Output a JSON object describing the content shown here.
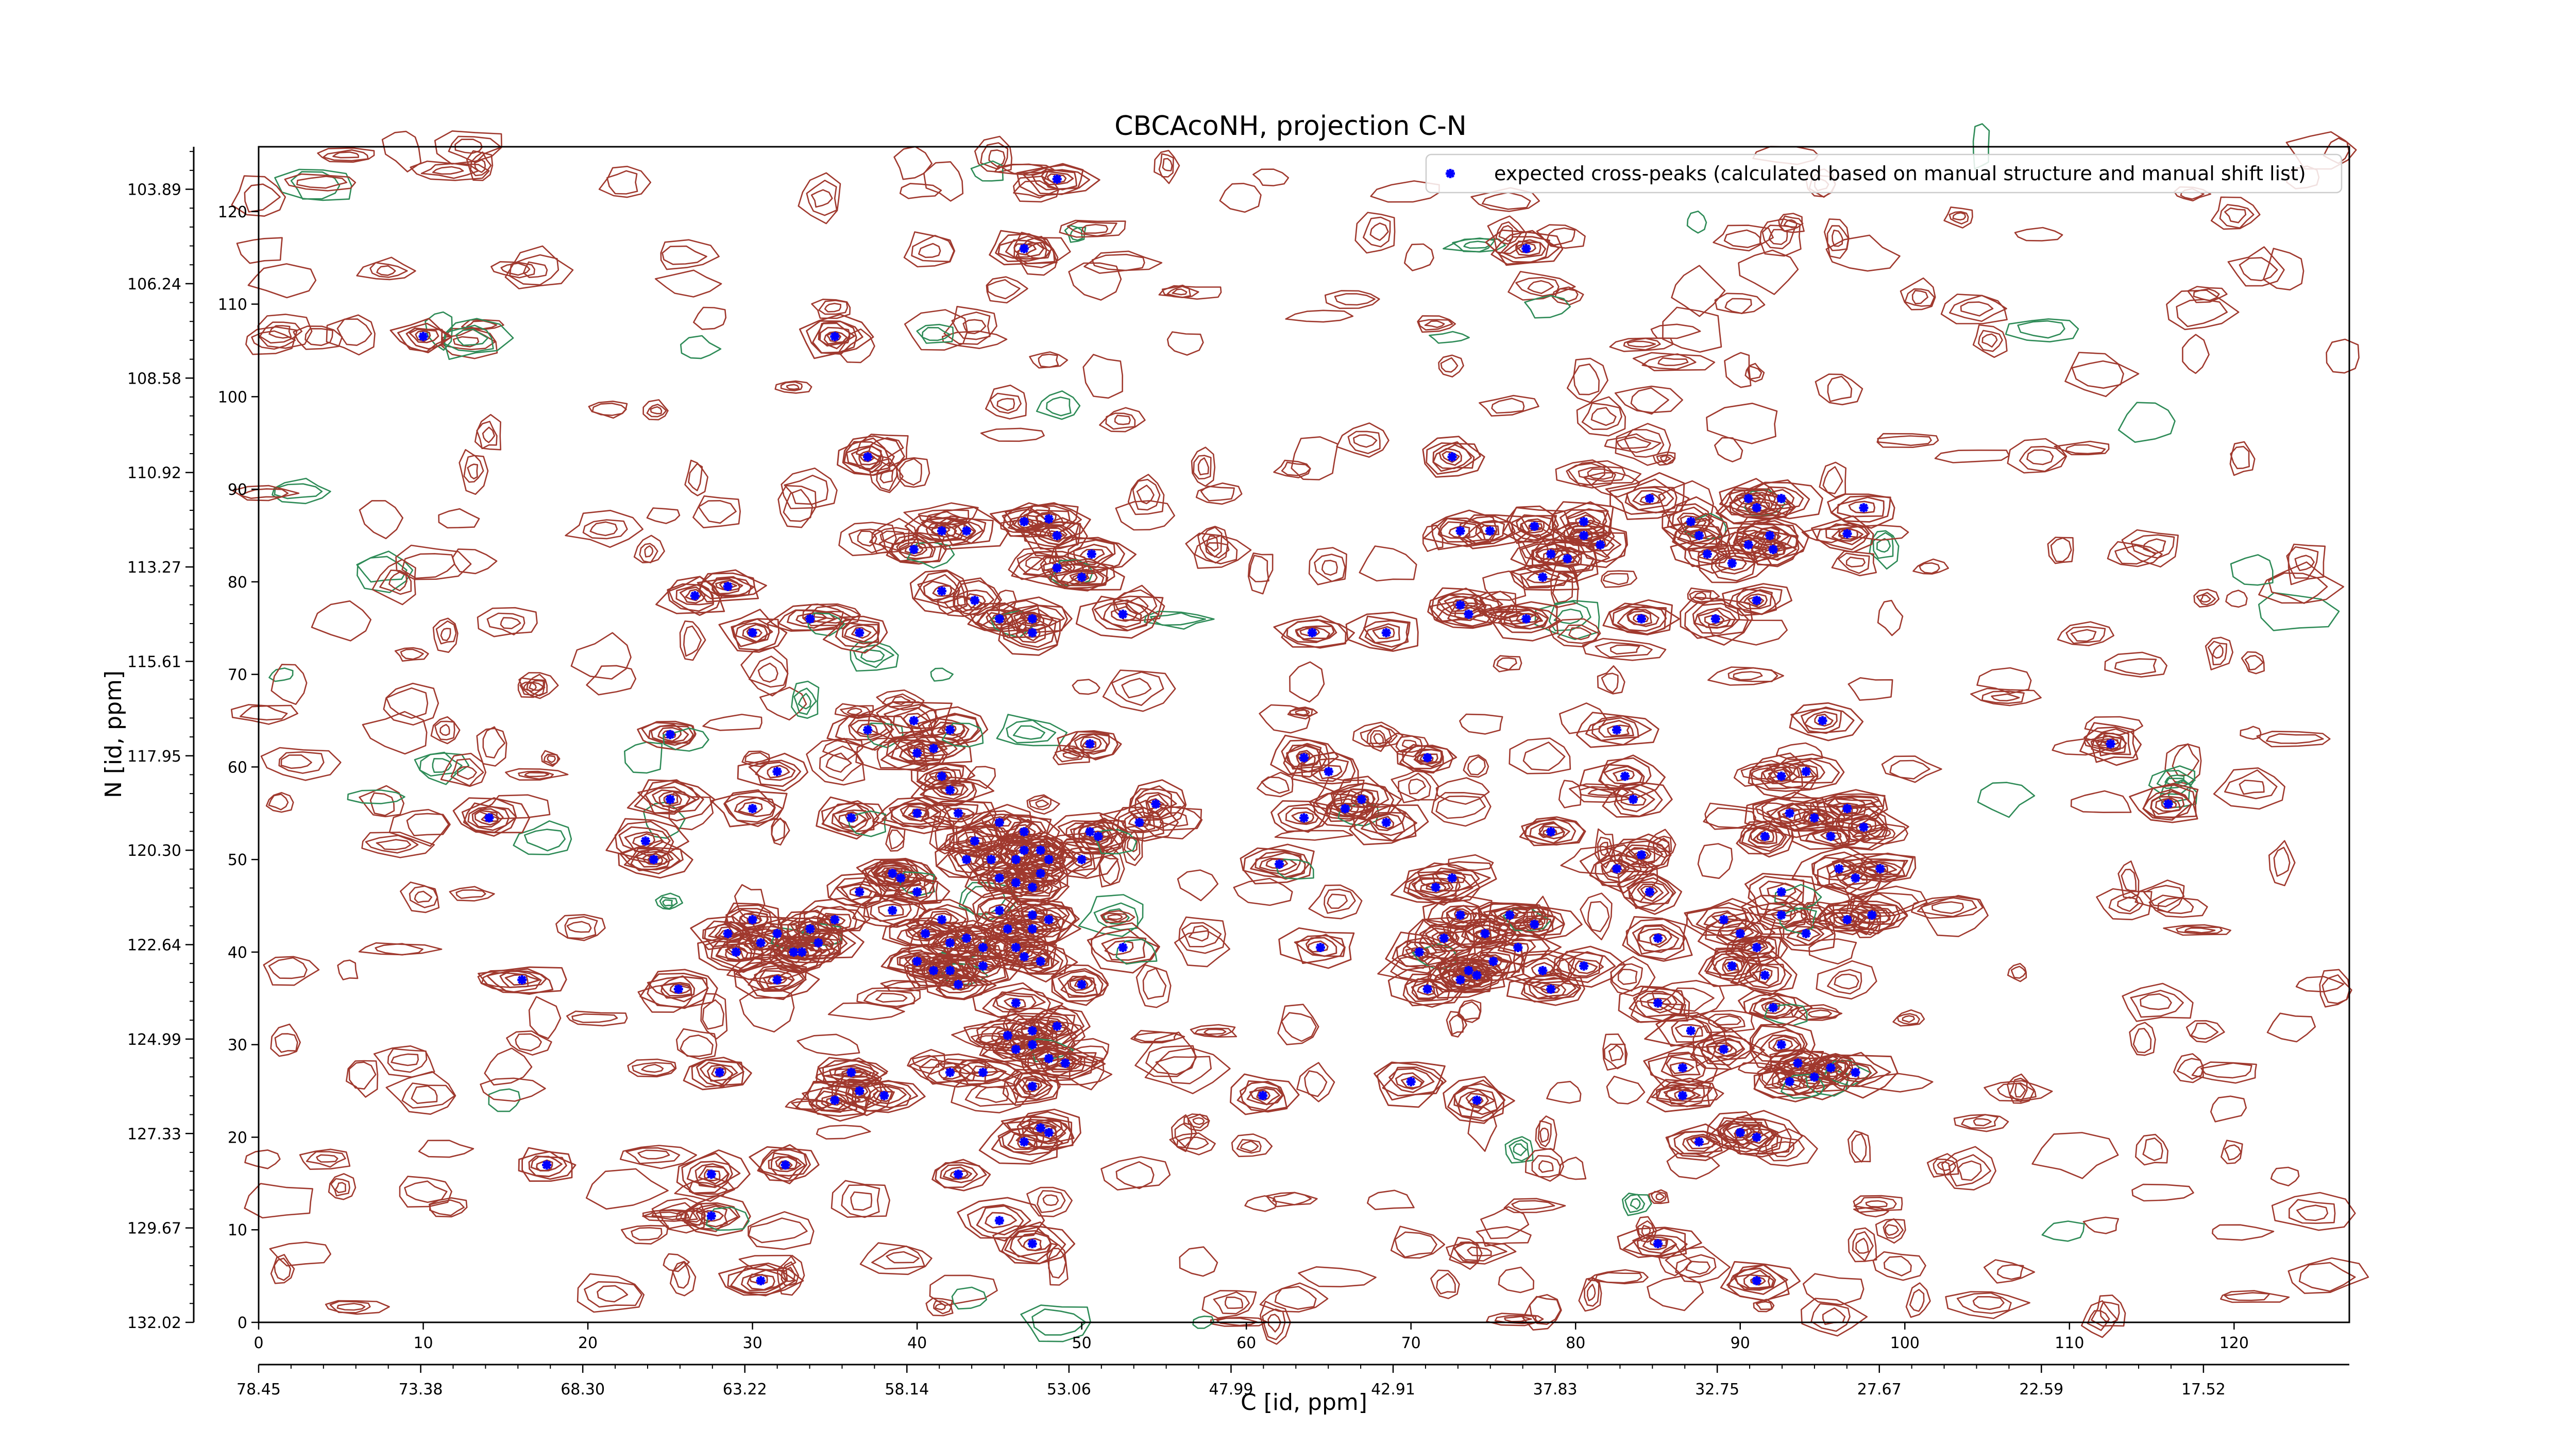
{
  "chart_data": {
    "type": "scatter",
    "title": "CBCAcoNH, projection C-N",
    "xlabel_bottom": "C [id, ppm]",
    "ylabel_left": "N [id, ppm]",
    "x_index_range": [
      0,
      127
    ],
    "y_index_range": [
      0,
      127
    ],
    "x_index_ticks": [
      0,
      10,
      20,
      30,
      40,
      50,
      60,
      70,
      80,
      90,
      100,
      110,
      120
    ],
    "y_index_ticks": [
      0,
      10,
      20,
      30,
      40,
      50,
      60,
      70,
      80,
      90,
      100,
      110,
      120
    ],
    "x_ppm_ticks": [
      "78.45",
      "73.38",
      "68.30",
      "63.22",
      "58.14",
      "53.06",
      "47.99",
      "42.91",
      "37.83",
      "32.75",
      "27.67",
      "22.59",
      "17.52"
    ],
    "y_ppm_ticks": [
      "132.02",
      "129.67",
      "127.33",
      "124.99",
      "122.64",
      "120.30",
      "117.95",
      "115.61",
      "113.27",
      "110.92",
      "108.58",
      "106.24",
      "103.89"
    ],
    "legend": {
      "placement": "top-right",
      "label": "expected cross-peaks (calculated based on manual structure and manual shift list)"
    },
    "marker_color": "#0000ff",
    "contour_color_positive": "#a0392e",
    "contour_color_negative": "#2e8b57",
    "series": [
      {
        "name": "expected cross-peaks (calculated based on manual structure and manual shift list)",
        "points": [
          [
            48.5,
            123.5
          ],
          [
            46.5,
            116
          ],
          [
            77,
            116
          ],
          [
            10,
            106.5
          ],
          [
            35,
            106.5
          ],
          [
            37,
            93.5
          ],
          [
            72.5,
            93.5
          ],
          [
            39.8,
            83.5
          ],
          [
            41.5,
            85.5
          ],
          [
            43,
            85.5
          ],
          [
            46.5,
            86.5
          ],
          [
            48,
            86.8
          ],
          [
            48.5,
            85
          ],
          [
            50.6,
            83
          ],
          [
            48.5,
            81.5
          ],
          [
            50,
            80.5
          ],
          [
            73,
            85.5
          ],
          [
            74.8,
            85.5
          ],
          [
            77.5,
            86
          ],
          [
            78.5,
            83
          ],
          [
            79.5,
            82.5
          ],
          [
            80.5,
            86.5
          ],
          [
            80.5,
            85
          ],
          [
            78,
            80.5
          ],
          [
            81.5,
            84
          ],
          [
            84.5,
            89
          ],
          [
            87,
            86.5
          ],
          [
            90.5,
            89
          ],
          [
            91,
            88
          ],
          [
            92.5,
            89
          ],
          [
            87.5,
            85
          ],
          [
            90.5,
            84
          ],
          [
            91.8,
            85
          ],
          [
            88,
            83
          ],
          [
            89.5,
            82
          ],
          [
            92,
            83.5
          ],
          [
            97.5,
            88
          ],
          [
            96.5,
            85.2
          ],
          [
            26.5,
            78.5
          ],
          [
            28.5,
            79.5
          ],
          [
            30,
            74.5
          ],
          [
            33.5,
            76
          ],
          [
            36.5,
            74.5
          ],
          [
            41.5,
            79
          ],
          [
            43.5,
            78
          ],
          [
            45,
            76
          ],
          [
            47,
            76
          ],
          [
            47,
            74.5
          ],
          [
            52.5,
            76.5
          ],
          [
            64,
            74.5
          ],
          [
            68.5,
            74.5
          ],
          [
            73,
            77.5
          ],
          [
            73.5,
            76.5
          ],
          [
            77,
            76
          ],
          [
            84,
            76
          ],
          [
            88.5,
            76
          ],
          [
            91,
            78
          ],
          [
            25,
            63.5
          ],
          [
            31.5,
            59.5
          ],
          [
            37,
            64
          ],
          [
            39.8,
            65
          ],
          [
            40,
            61.5
          ],
          [
            41,
            62
          ],
          [
            42,
            64
          ],
          [
            41.5,
            59
          ],
          [
            42,
            57.5
          ],
          [
            50.5,
            62.5
          ],
          [
            63.5,
            61
          ],
          [
            65,
            59.5
          ],
          [
            71,
            61
          ],
          [
            82.5,
            64
          ],
          [
            83,
            59
          ],
          [
            83.5,
            56.5
          ],
          [
            94,
            59.5
          ],
          [
            95,
            65
          ],
          [
            112.5,
            62.5
          ],
          [
            25,
            56.5
          ],
          [
            23.5,
            52
          ],
          [
            24,
            50
          ],
          [
            14,
            54.5
          ],
          [
            30,
            55.5
          ],
          [
            36,
            54.5
          ],
          [
            40,
            55
          ],
          [
            42.5,
            55
          ],
          [
            43.5,
            52
          ],
          [
            45,
            54
          ],
          [
            46.5,
            53
          ],
          [
            43,
            50
          ],
          [
            44.5,
            50
          ],
          [
            46,
            50
          ],
          [
            46.5,
            51
          ],
          [
            47.5,
            51
          ],
          [
            48,
            50
          ],
          [
            47.5,
            48.5
          ],
          [
            45,
            48
          ],
          [
            46,
            47.5
          ],
          [
            47,
            47
          ],
          [
            50,
            50
          ],
          [
            50.5,
            53
          ],
          [
            51,
            52.5
          ],
          [
            53.5,
            54
          ],
          [
            54.5,
            56
          ],
          [
            62,
            49.5
          ],
          [
            63.5,
            54.5
          ],
          [
            66,
            55.5
          ],
          [
            67,
            56.5
          ],
          [
            68.5,
            54
          ],
          [
            71.5,
            47
          ],
          [
            72.5,
            48
          ],
          [
            78.5,
            53
          ],
          [
            82.5,
            49
          ],
          [
            84,
            50.5
          ],
          [
            84.5,
            46.5
          ],
          [
            91.5,
            52.5
          ],
          [
            92.5,
            59
          ],
          [
            93,
            55
          ],
          [
            94.5,
            54.5
          ],
          [
            95.5,
            52.5
          ],
          [
            96.5,
            55.5
          ],
          [
            97.5,
            53.5
          ],
          [
            96,
            49
          ],
          [
            97,
            48
          ],
          [
            98.5,
            49
          ],
          [
            92.5,
            46.5
          ],
          [
            116,
            56
          ],
          [
            36.5,
            46.5
          ],
          [
            38.5,
            48.5
          ],
          [
            39,
            48
          ],
          [
            38.5,
            44.5
          ],
          [
            40,
            46.5
          ],
          [
            40.5,
            42
          ],
          [
            41.5,
            43.5
          ],
          [
            42,
            41
          ],
          [
            42,
            38
          ],
          [
            43,
            41.5
          ],
          [
            44,
            40.5
          ],
          [
            44,
            38.5
          ],
          [
            45.5,
            42.5
          ],
          [
            46,
            40.5
          ],
          [
            46.5,
            39.5
          ],
          [
            47,
            42.5
          ],
          [
            47.5,
            39
          ],
          [
            48,
            43.5
          ],
          [
            45,
            44.5
          ],
          [
            47,
            44
          ],
          [
            40,
            39
          ],
          [
            41,
            38
          ],
          [
            42.5,
            36.5
          ],
          [
            52.5,
            40.5
          ],
          [
            50,
            36.5
          ],
          [
            46,
            34.5
          ],
          [
            47,
            31.5
          ],
          [
            48.5,
            32
          ],
          [
            45.5,
            31
          ],
          [
            46,
            29.5
          ],
          [
            47,
            30
          ],
          [
            48,
            28.5
          ],
          [
            49,
            28
          ],
          [
            44,
            27
          ],
          [
            42,
            27
          ],
          [
            64.5,
            40.5
          ],
          [
            70.5,
            40
          ],
          [
            72,
            41.5
          ],
          [
            73,
            44
          ],
          [
            74.5,
            42
          ],
          [
            75,
            39
          ],
          [
            76.5,
            40.5
          ],
          [
            73,
            37
          ],
          [
            73.5,
            38
          ],
          [
            74,
            37.5
          ],
          [
            76,
            44
          ],
          [
            71,
            36
          ],
          [
            78.5,
            36
          ],
          [
            78,
            38
          ],
          [
            80.5,
            38.5
          ],
          [
            77.5,
            43
          ],
          [
            85,
            41.5
          ],
          [
            89,
            43.5
          ],
          [
            90,
            42
          ],
          [
            91,
            40.5
          ],
          [
            94,
            42
          ],
          [
            92.5,
            44
          ],
          [
            89.5,
            38.5
          ],
          [
            91.5,
            37.5
          ],
          [
            96.5,
            43.5
          ],
          [
            98,
            44
          ],
          [
            28.5,
            42
          ],
          [
            29,
            40
          ],
          [
            30,
            43.5
          ],
          [
            30.5,
            41
          ],
          [
            31.5,
            42
          ],
          [
            32.5,
            40
          ],
          [
            33.5,
            42.5
          ],
          [
            34,
            41
          ],
          [
            35,
            43.5
          ],
          [
            33,
            40
          ],
          [
            31.5,
            37
          ],
          [
            25.5,
            36
          ],
          [
            16,
            37
          ],
          [
            28,
            27
          ],
          [
            35,
            24
          ],
          [
            36,
            27
          ],
          [
            38,
            24.5
          ],
          [
            36.5,
            25
          ],
          [
            42.5,
            16
          ],
          [
            47,
            25.5
          ],
          [
            46.5,
            19.5
          ],
          [
            47.5,
            21
          ],
          [
            48,
            20.5
          ],
          [
            61,
            24.5
          ],
          [
            70,
            26
          ],
          [
            74,
            24
          ],
          [
            85,
            34.5
          ],
          [
            87,
            31.5
          ],
          [
            89,
            29.5
          ],
          [
            92,
            34
          ],
          [
            86.5,
            27.5
          ],
          [
            86.5,
            24.5
          ],
          [
            92.5,
            30
          ],
          [
            93.5,
            28
          ],
          [
            94.5,
            26.5
          ],
          [
            95.5,
            27.5
          ],
          [
            93,
            26
          ],
          [
            87.5,
            19.5
          ],
          [
            90,
            20.5
          ],
          [
            91,
            20
          ],
          [
            97,
            27
          ],
          [
            17.5,
            17
          ],
          [
            27.5,
            16
          ],
          [
            32,
            17
          ],
          [
            27.5,
            11.5
          ],
          [
            45,
            11
          ],
          [
            47,
            8.5
          ],
          [
            85,
            8.5
          ],
          [
            30.5,
            4.5
          ],
          [
            91,
            4.5
          ]
        ]
      }
    ]
  }
}
